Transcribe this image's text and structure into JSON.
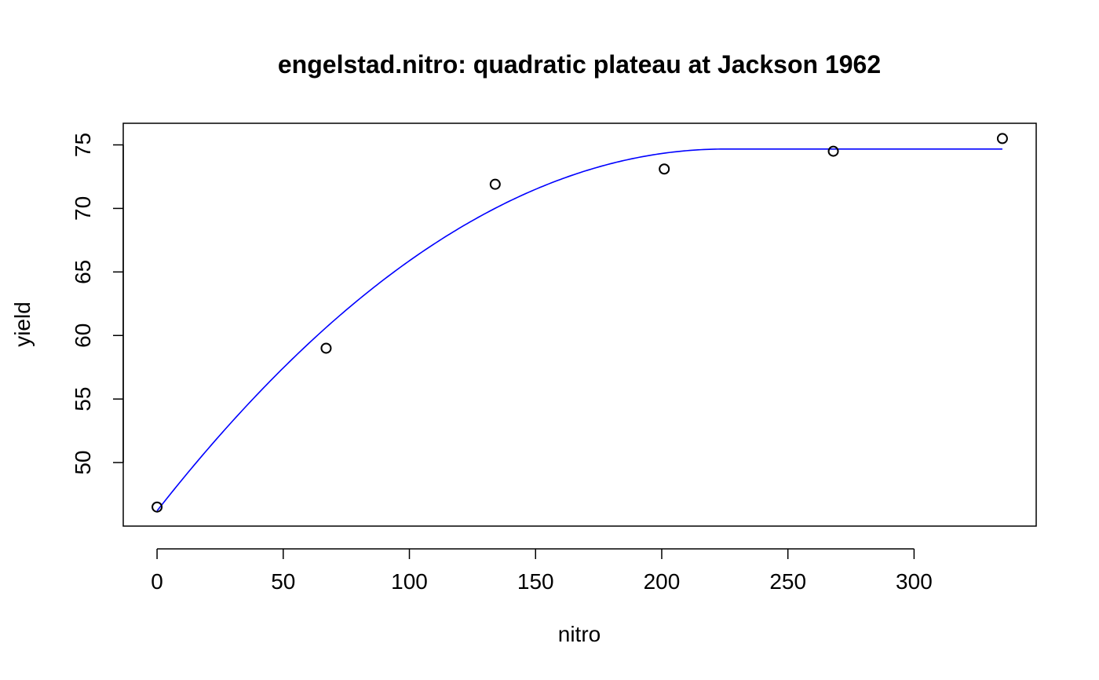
{
  "chart_data": {
    "type": "scatter",
    "title": "engelstad.nitro: quadratic plateau at Jackson 1962",
    "xlabel": "nitro",
    "ylabel": "yield",
    "xlim": [
      -13.4,
      348.4
    ],
    "ylim": [
      45.0,
      76.7
    ],
    "xticks": [
      0,
      50,
      100,
      150,
      200,
      250,
      300
    ],
    "yticks": [
      50,
      55,
      60,
      65,
      70,
      75
    ],
    "grid": false,
    "legend": "none",
    "series": [
      {
        "kind": "points",
        "x": [
          0,
          67,
          134,
          201,
          268,
          335
        ],
        "y": [
          46.5,
          59.0,
          71.9,
          73.1,
          74.5,
          75.5
        ]
      },
      {
        "kind": "fitted-curve",
        "color": "#0000ff",
        "model": "quadratic-plateau",
        "a": 46.2,
        "b": 0.253,
        "c": -0.000562,
        "join": 225,
        "x_range": [
          0,
          335
        ]
      }
    ]
  }
}
